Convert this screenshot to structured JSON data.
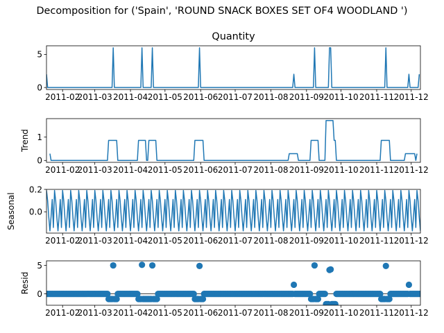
{
  "figure": {
    "suptitle": "Decomposition for ('Spain', 'ROUND SNACK BOXES SET OF4 WOODLAND ')"
  },
  "colors": {
    "series": "#1f77b4",
    "axis": "#000000"
  },
  "chart_data": [
    {
      "type": "line",
      "title": "Quantity",
      "ylabel": "",
      "xlim": [
        "2011-01-18",
        "2011-12-09"
      ],
      "ylim": [
        -0.3,
        6.3
      ],
      "yticks": [
        0,
        5
      ],
      "xticks": [
        "2011-02-01",
        "2011-03-01",
        "2011-04-01",
        "2011-05-01",
        "2011-06-01",
        "2011-07-01",
        "2011-08-01",
        "2011-09-01",
        "2011-10-01",
        "2011-11-01",
        "2011-12-01"
      ],
      "xtick_labels": [
        "2011-02",
        "2011-03",
        "2011-04",
        "2011-05",
        "2011-06",
        "2011-07",
        "2011-08",
        "2011-09",
        "2011-10",
        "2011-11",
        "2011-12"
      ],
      "series": [
        {
          "x": [
            "2011-01-18",
            "2011-01-19",
            "2011-03-16",
            "2011-03-17",
            "2011-03-18",
            "2011-04-10",
            "2011-04-11",
            "2011-04-12",
            "2011-04-19",
            "2011-04-20",
            "2011-04-21",
            "2011-05-30",
            "2011-05-31",
            "2011-06-01",
            "2011-08-20",
            "2011-08-21",
            "2011-08-22",
            "2011-09-07",
            "2011-09-08",
            "2011-09-09",
            "2011-09-20",
            "2011-09-21",
            "2011-09-22",
            "2011-09-23",
            "2011-11-08",
            "2011-11-09",
            "2011-11-10",
            "2011-11-28",
            "2011-11-29",
            "2011-11-30",
            "2011-12-07",
            "2011-12-08"
          ],
          "values": [
            2,
            0,
            0,
            6,
            0,
            0,
            6,
            0,
            0,
            6,
            0,
            0,
            6,
            0,
            0,
            2,
            0,
            0,
            6,
            0,
            0,
            6,
            6,
            0,
            0,
            6,
            0,
            0,
            2,
            0,
            0,
            2
          ]
        }
      ]
    },
    {
      "type": "line",
      "title": "",
      "ylabel": "Trend",
      "xlim": [
        "2011-01-18",
        "2011-12-09"
      ],
      "ylim": [
        -0.08,
        1.79
      ],
      "yticks": [
        0,
        1
      ],
      "xticks": [
        "2011-02-01",
        "2011-03-01",
        "2011-04-01",
        "2011-05-01",
        "2011-06-01",
        "2011-07-01",
        "2011-08-01",
        "2011-09-01",
        "2011-10-01",
        "2011-11-01",
        "2011-12-01"
      ],
      "xtick_labels": [
        "2011-02",
        "2011-03",
        "2011-04",
        "2011-05",
        "2011-06",
        "2011-07",
        "2011-08",
        "2011-09",
        "2011-10",
        "2011-11",
        "2011-12"
      ],
      "series": [
        {
          "x": [
            "2011-01-21",
            "2011-01-22",
            "2011-03-12",
            "2011-03-13",
            "2011-03-20",
            "2011-03-21",
            "2011-04-07",
            "2011-04-08",
            "2011-04-14",
            "2011-04-15",
            "2011-04-16",
            "2011-04-17",
            "2011-04-23",
            "2011-04-24",
            "2011-05-26",
            "2011-05-27",
            "2011-06-03",
            "2011-06-04",
            "2011-08-16",
            "2011-08-17",
            "2011-08-24",
            "2011-08-25",
            "2011-09-04",
            "2011-09-05",
            "2011-09-11",
            "2011-09-12",
            "2011-09-17",
            "2011-09-18",
            "2011-09-24",
            "2011-09-25",
            "2011-09-26",
            "2011-09-27",
            "2011-11-04",
            "2011-11-05",
            "2011-11-12",
            "2011-11-13",
            "2011-11-25",
            "2011-11-26",
            "2011-12-04",
            "2011-12-05",
            "2011-12-06"
          ],
          "values": [
            0.29,
            0,
            0,
            0.86,
            0.86,
            0,
            0,
            0.86,
            0.86,
            0,
            0,
            0.86,
            0.86,
            0,
            0,
            0.86,
            0.86,
            0,
            0,
            0.29,
            0.29,
            0,
            0,
            0.86,
            0.86,
            0,
            0,
            1.71,
            1.71,
            0.86,
            0.86,
            0,
            0,
            0.86,
            0.86,
            0,
            0,
            0.29,
            0.29,
            0,
            0.29
          ]
        }
      ]
    },
    {
      "type": "line",
      "title": "",
      "ylabel": "Seasonal",
      "xlim": [
        "2011-01-18",
        "2011-12-09"
      ],
      "ylim": [
        -0.19,
        0.2
      ],
      "yticks": [
        0.0,
        0.2
      ],
      "ytick_labels": [
        "0.0",
        "0.2"
      ],
      "period_days": 7,
      "weekly_pattern": [
        0.19,
        0.1,
        -0.05,
        -0.17,
        -0.04,
        0.11,
        -0.14
      ],
      "xticks": [
        "2011-02-01",
        "2011-03-01",
        "2011-04-01",
        "2011-05-01",
        "2011-06-01",
        "2011-07-01",
        "2011-08-01",
        "2011-09-01",
        "2011-10-01",
        "2011-11-01",
        "2011-12-01"
      ],
      "xtick_labels": [
        "2011-02",
        "2011-03",
        "2011-04",
        "2011-05",
        "2011-06",
        "2011-07",
        "2011-08",
        "2011-09",
        "2011-10",
        "2011-11",
        "2011-12"
      ],
      "series": [
        {
          "start": "2011-01-18",
          "end": "2011-12-09"
        }
      ]
    },
    {
      "type": "scatter",
      "title": "",
      "ylabel": "Resid",
      "xlim": [
        "2011-01-18",
        "2011-12-09"
      ],
      "ylim": [
        -2.0,
        5.8
      ],
      "yticks": [
        0,
        5
      ],
      "baseline": 0,
      "xticks": [
        "2011-02-01",
        "2011-03-01",
        "2011-04-01",
        "2011-05-01",
        "2011-06-01",
        "2011-07-01",
        "2011-08-01",
        "2011-09-01",
        "2011-10-01",
        "2011-11-01",
        "2011-12-01"
      ],
      "xtick_labels": [
        "2011-02",
        "2011-03",
        "2011-04",
        "2011-05",
        "2011-06",
        "2011-07",
        "2011-08",
        "2011-09",
        "2011-10",
        "2011-11",
        "2011-12"
      ],
      "outliers": [
        {
          "x": "2011-03-17",
          "y": 5.0
        },
        {
          "x": "2011-04-11",
          "y": 5.1
        },
        {
          "x": "2011-04-20",
          "y": 5.0
        },
        {
          "x": "2011-05-31",
          "y": 4.9
        },
        {
          "x": "2011-08-21",
          "y": 1.6
        },
        {
          "x": "2011-09-08",
          "y": 5.0
        },
        {
          "x": "2011-09-21",
          "y": 4.2
        },
        {
          "x": "2011-09-22",
          "y": 4.3
        },
        {
          "x": "2011-11-09",
          "y": 4.9
        },
        {
          "x": "2011-11-29",
          "y": 1.6
        }
      ],
      "dips": [
        {
          "from": "2011-03-13",
          "to": "2011-03-20",
          "y": -0.9
        },
        {
          "from": "2011-04-08",
          "to": "2011-04-16",
          "y": -0.9
        },
        {
          "from": "2011-04-17",
          "to": "2011-04-24",
          "y": -0.9
        },
        {
          "from": "2011-05-27",
          "to": "2011-06-03",
          "y": -0.9
        },
        {
          "from": "2011-09-05",
          "to": "2011-09-11",
          "y": -0.9
        },
        {
          "from": "2011-09-18",
          "to": "2011-09-26",
          "y": -1.8
        },
        {
          "from": "2011-11-05",
          "to": "2011-11-12",
          "y": -0.9
        }
      ]
    }
  ]
}
